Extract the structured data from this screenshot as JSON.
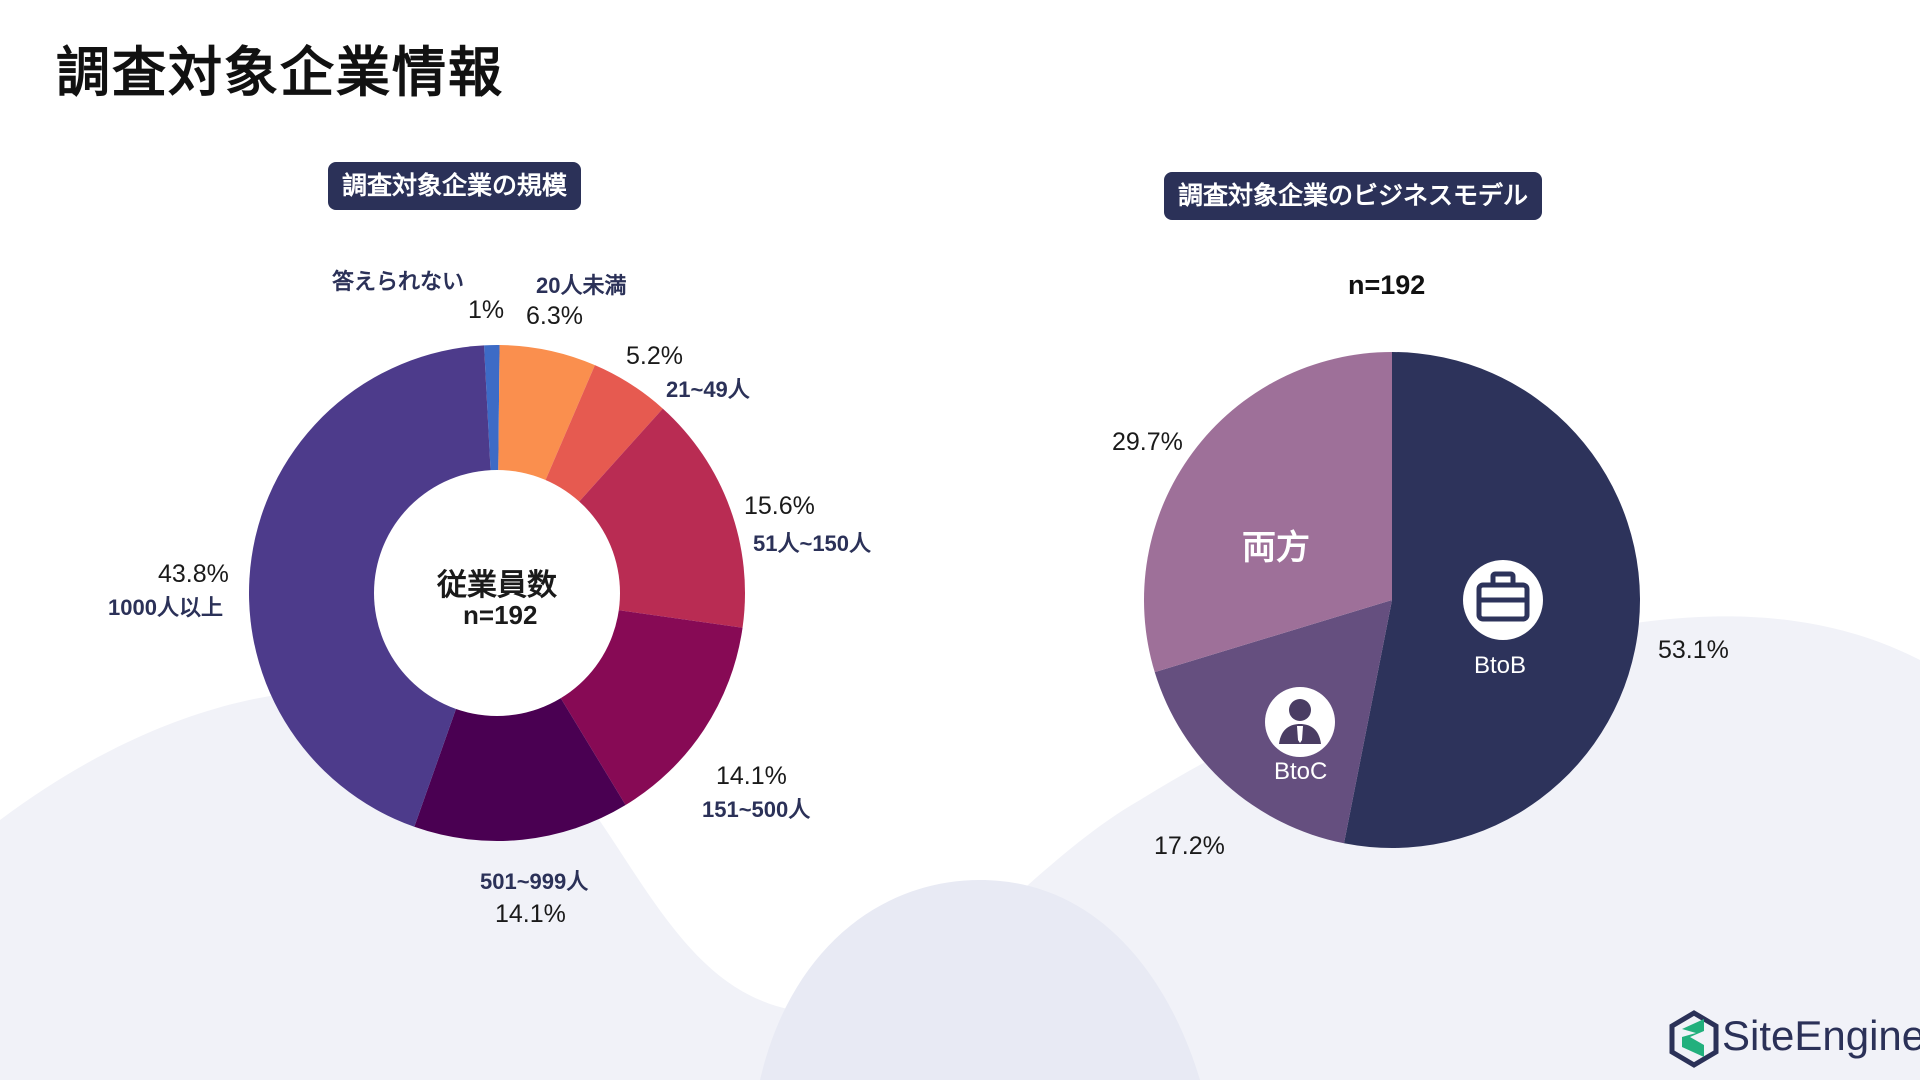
{
  "page": {
    "title": "調査対象企業情報"
  },
  "colors": {
    "navy": "#2b3158",
    "background_wave": "#eef0f7"
  },
  "chart_data": [
    {
      "type": "pie",
      "variant": "donut",
      "title": "調査対象企業の規模",
      "center_label": "従業員数",
      "center_n": "n=192",
      "slices": [
        {
          "label": "答えられない",
          "value": 1,
          "value_label": "1%",
          "color": "#3d6bc6"
        },
        {
          "label": "20人未満",
          "value": 6.3,
          "value_label": "6.3%",
          "color": "#fa8f4e"
        },
        {
          "label": "21~49人",
          "value": 5.2,
          "value_label": "5.2%",
          "color": "#e65a50"
        },
        {
          "label": "51人~150人",
          "value": 15.6,
          "value_label": "15.6%",
          "color": "#b92c53"
        },
        {
          "label": "151~500人",
          "value": 14.1,
          "value_label": "14.1%",
          "color": "#870a55"
        },
        {
          "label": "501~999人",
          "value": 14.1,
          "value_label": "14.1%",
          "color": "#4a0052"
        },
        {
          "label": "1000人以上",
          "value": 43.8,
          "value_label": "43.8%",
          "color": "#4d3b8b"
        }
      ]
    },
    {
      "type": "pie",
      "title": "調査対象企業のビジネスモデル",
      "n": "n=192",
      "slices": [
        {
          "label": "BtoB",
          "value": 53.1,
          "value_label": "53.1%",
          "color": "#2d335b",
          "icon": "briefcase-icon"
        },
        {
          "label": "BtoC",
          "value": 17.2,
          "value_label": "17.2%",
          "color": "#654f7f",
          "icon": "person-icon"
        },
        {
          "label": "両方",
          "value": 29.7,
          "value_label": "29.7%",
          "color": "#9e7099"
        }
      ]
    }
  ],
  "logo": {
    "text": "SiteEngine"
  }
}
